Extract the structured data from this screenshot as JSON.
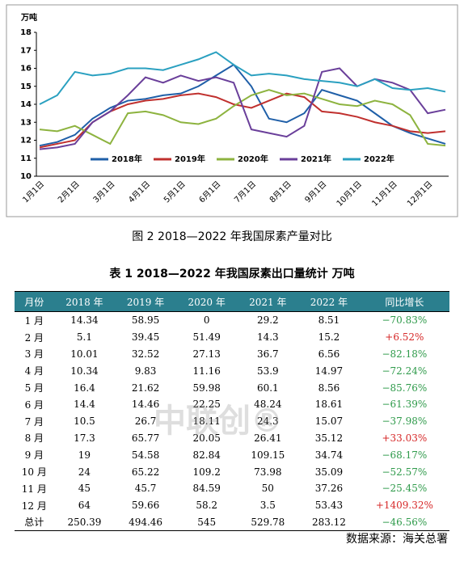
{
  "chart_data": {
    "type": "line",
    "y_label": "万吨",
    "categories": [
      "1月1日",
      null,
      "2月1日",
      null,
      "3月1日",
      null,
      "4月1日",
      null,
      "5月1日",
      null,
      "6月1日",
      null,
      "7月1日",
      null,
      "8月1日",
      null,
      "9月1日",
      null,
      "10月1日",
      null,
      "11月1日",
      null,
      "12月1日",
      null
    ],
    "series": [
      {
        "name": "2018年",
        "color": "#1f5fa8",
        "values": [
          11.7,
          11.9,
          12.3,
          13.2,
          13.8,
          14.2,
          14.3,
          14.5,
          14.6,
          15.0,
          15.6,
          16.2,
          15.0,
          13.2,
          13.0,
          13.5,
          14.8,
          14.5,
          14.2,
          13.5,
          12.8,
          12.4,
          12.1,
          11.8
        ]
      },
      {
        "name": "2019年",
        "color": "#c0302e",
        "values": [
          11.6,
          11.8,
          12.0,
          13.0,
          13.6,
          14.0,
          14.2,
          14.3,
          14.5,
          14.6,
          14.4,
          14.0,
          13.8,
          14.2,
          14.6,
          14.4,
          13.6,
          13.5,
          13.3,
          13.0,
          12.8,
          12.5,
          12.4,
          12.5
        ]
      },
      {
        "name": "2020年",
        "color": "#8db33f",
        "values": [
          12.6,
          12.5,
          12.8,
          12.3,
          11.8,
          13.5,
          13.6,
          13.4,
          13.0,
          12.9,
          13.2,
          13.9,
          14.5,
          14.8,
          14.5,
          14.6,
          14.3,
          14.0,
          13.9,
          14.2,
          14.0,
          13.4,
          11.8,
          11.7
        ]
      },
      {
        "name": "2021年",
        "color": "#6a3f9a",
        "values": [
          11.5,
          11.6,
          11.8,
          13.0,
          13.6,
          14.5,
          15.5,
          15.2,
          15.6,
          15.3,
          15.5,
          15.2,
          12.6,
          12.4,
          12.2,
          12.8,
          15.8,
          16.0,
          15.0,
          15.4,
          15.2,
          14.8,
          13.5,
          13.7
        ]
      },
      {
        "name": "2022年",
        "color": "#2aa0c0",
        "values": [
          14.0,
          14.5,
          15.8,
          15.6,
          15.7,
          16.0,
          16.0,
          15.9,
          16.2,
          16.5,
          16.9,
          16.2,
          15.6,
          15.7,
          15.6,
          15.4,
          15.3,
          15.2,
          15.0,
          15.4,
          14.9,
          14.8,
          14.9,
          14.7
        ]
      }
    ],
    "ylim": [
      10,
      18
    ],
    "yticks": [
      10,
      11,
      12,
      13,
      14,
      15,
      16,
      17,
      18
    ],
    "legend": "bottom"
  },
  "figure_caption": "图 2  2018—2022 年我国尿素产量对比",
  "table_title": "表 1  2018—2022 年我国尿素出口量统计  万吨",
  "table": {
    "header": [
      "月份",
      "2018 年",
      "2019 年",
      "2020 年",
      "2021 年",
      "2022 年",
      "同比增长"
    ],
    "rows": [
      [
        "1 月",
        "14.34",
        "58.95",
        "0",
        "29.2",
        "8.51",
        "−70.83%"
      ],
      [
        "2 月",
        "5.1",
        "39.45",
        "51.49",
        "14.3",
        "15.2",
        "+6.52%"
      ],
      [
        "3 月",
        "10.01",
        "32.52",
        "27.13",
        "36.7",
        "6.56",
        "−82.18%"
      ],
      [
        "4 月",
        "10.34",
        "9.83",
        "11.16",
        "53.9",
        "14.97",
        "−72.24%"
      ],
      [
        "5 月",
        "16.4",
        "21.62",
        "59.98",
        "60.1",
        "8.56",
        "−85.76%"
      ],
      [
        "6 月",
        "14.4",
        "14.46",
        "22.25",
        "48.24",
        "18.61",
        "−61.39%"
      ],
      [
        "7 月",
        "10.5",
        "26.7",
        "18.11",
        "24.3",
        "15.07",
        "−37.98%"
      ],
      [
        "8 月",
        "17.3",
        "65.77",
        "20.05",
        "26.41",
        "35.12",
        "+33.03%"
      ],
      [
        "9 月",
        "19",
        "54.58",
        "82.84",
        "109.15",
        "34.74",
        "−68.17%"
      ],
      [
        "10 月",
        "24",
        "65.22",
        "109.2",
        "73.98",
        "35.09",
        "−52.57%"
      ],
      [
        "11 月",
        "45",
        "45.7",
        "84.59",
        "50",
        "37.26",
        "−25.45%"
      ],
      [
        "12 月",
        "64",
        "59.66",
        "58.2",
        "3.5",
        "53.43",
        "+1409.32%"
      ],
      [
        "总计",
        "250.39",
        "494.46",
        "545",
        "529.78",
        "283.12",
        "−46.56%"
      ]
    ]
  },
  "watermark": "中联创®",
  "source": "数据来源：海关总署"
}
